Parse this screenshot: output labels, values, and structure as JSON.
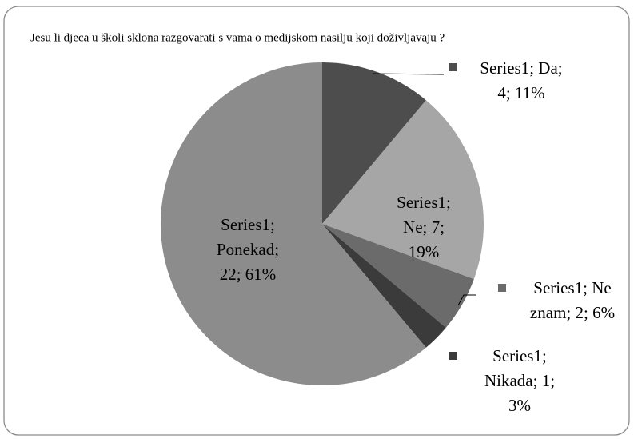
{
  "chart_data": {
    "type": "pie",
    "title": "Jesu li djeca u školi sklona razgovarati s vama o medijskom nasilju koji doživljavaju ?",
    "series_name": "Series1",
    "categories": [
      "Da",
      "Ne",
      "Ne znam",
      "Nikada",
      "Ponekad"
    ],
    "values": [
      4,
      7,
      2,
      1,
      22
    ],
    "value_labels": [
      "Series1; Da; 4; 11%",
      "Series1; Ne; 7; 19%",
      "Series1; Ne znam; 2; 6%",
      "Series1; Nikada; 1; 3%",
      "Series1; Ponekad; 22; 61%"
    ],
    "colors": [
      "#4d4d4d",
      "#a6a6a6",
      "#6b6b6b",
      "#3b3b3b",
      "#8c8c8c"
    ]
  }
}
